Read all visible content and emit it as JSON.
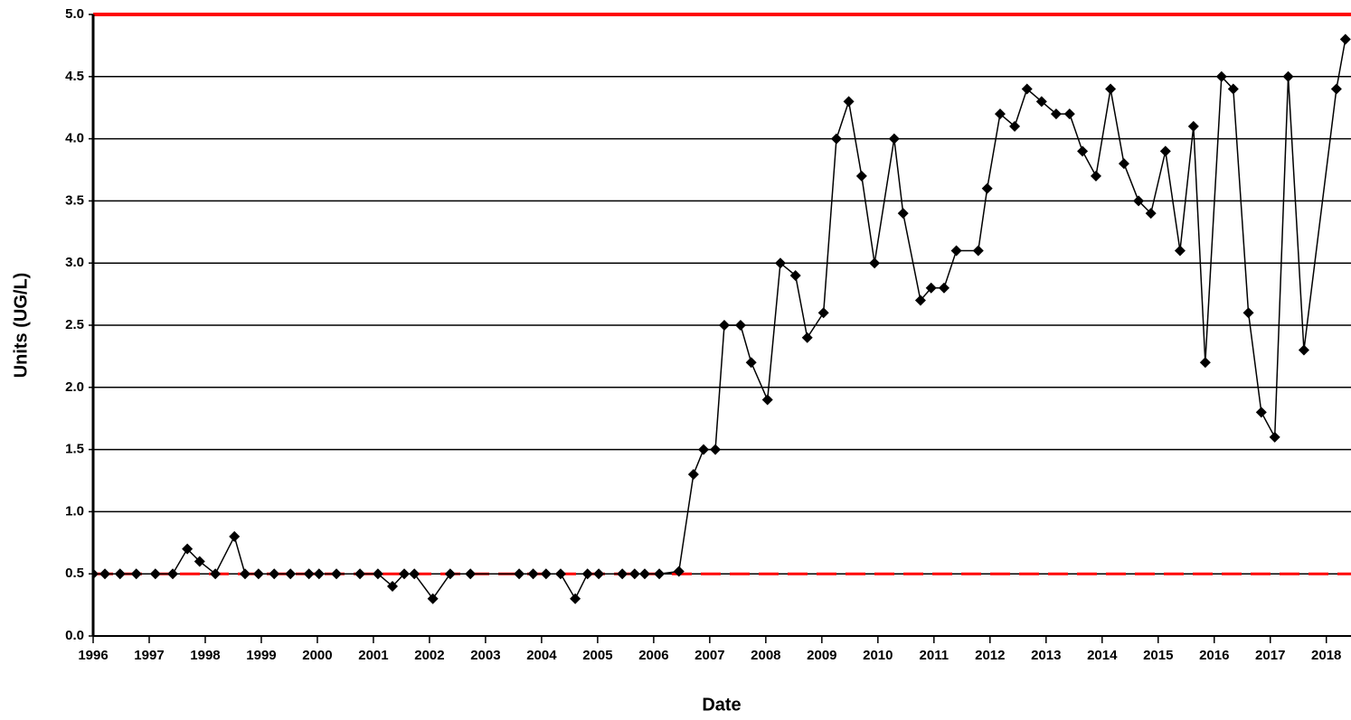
{
  "chart_data": {
    "type": "line",
    "x_label": "Date",
    "y_label": "Units (UG/L)",
    "x": [
      1996.0,
      1996.21,
      1996.48,
      1996.77,
      1997.11,
      1997.42,
      1997.68,
      1997.9,
      1998.18,
      1998.52,
      1998.71,
      1998.95,
      1999.23,
      1999.52,
      1999.85,
      2000.03,
      2000.34,
      2000.76,
      2001.08,
      2001.34,
      2001.55,
      2001.73,
      2002.06,
      2002.37,
      2002.73,
      2003.6,
      2003.85,
      2004.08,
      2004.34,
      2004.6,
      2004.82,
      2005.02,
      2005.44,
      2005.66,
      2005.84,
      2006.1,
      2006.45,
      2006.71,
      2006.89,
      2007.1,
      2007.26,
      2007.55,
      2007.74,
      2008.03,
      2008.26,
      2008.53,
      2008.74,
      2009.03,
      2009.26,
      2009.48,
      2009.71,
      2009.94,
      2010.29,
      2010.45,
      2010.76,
      2010.95,
      2011.18,
      2011.4,
      2011.79,
      2011.95,
      2012.18,
      2012.44,
      2012.66,
      2012.92,
      2013.18,
      2013.42,
      2013.65,
      2013.89,
      2014.15,
      2014.39,
      2014.65,
      2014.87,
      2015.13,
      2015.39,
      2015.63,
      2015.84,
      2016.13,
      2016.34,
      2016.61,
      2016.84,
      2017.08,
      2017.32,
      2017.6,
      2018.18,
      2018.34
    ],
    "series": [
      {
        "color": "#000000",
        "values": [
          0.5,
          0.5,
          0.5,
          0.5,
          0.5,
          0.5,
          0.7,
          0.6,
          0.5,
          0.8,
          0.5,
          0.5,
          0.5,
          0.5,
          0.5,
          0.5,
          0.5,
          0.5,
          0.5,
          0.4,
          0.5,
          0.5,
          0.3,
          0.5,
          0.5,
          0.5,
          0.5,
          0.5,
          0.5,
          0.3,
          0.5,
          0.5,
          0.5,
          0.5,
          0.5,
          0.5,
          0.52,
          1.3,
          1.5,
          1.5,
          2.5,
          2.5,
          2.2,
          1.9,
          3.0,
          2.9,
          2.4,
          2.6,
          4.0,
          4.3,
          3.7,
          3.0,
          4.0,
          3.4,
          2.7,
          2.8,
          2.8,
          3.1,
          3.1,
          3.6,
          4.2,
          4.1,
          4.4,
          4.3,
          4.2,
          4.2,
          3.9,
          3.7,
          4.4,
          3.8,
          3.5,
          3.4,
          3.9,
          3.1,
          4.1,
          2.2,
          4.5,
          4.4,
          2.6,
          1.8,
          1.6,
          4.5,
          2.3,
          4.4,
          4.8
        ]
      }
    ],
    "xlim": [
      1996,
      2018.44
    ],
    "xticks": [
      1996,
      1997,
      1998,
      1999,
      2000,
      2001,
      2002,
      2003,
      2004,
      2005,
      2006,
      2007,
      2008,
      2009,
      2010,
      2011,
      2012,
      2013,
      2014,
      2015,
      2016,
      2017,
      2018
    ],
    "ylim": [
      0,
      5
    ],
    "yticks": [
      {
        "value": 0,
        "label": "0.0"
      },
      {
        "value": 0.5,
        "label": "0.5"
      },
      {
        "value": 1,
        "label": "1.0"
      },
      {
        "value": 1.5,
        "label": "1.5"
      },
      {
        "value": 2,
        "label": "2.0"
      },
      {
        "value": 2.5,
        "label": "2.5"
      },
      {
        "value": 3,
        "label": "3.0"
      },
      {
        "value": 3.5,
        "label": "3.5"
      },
      {
        "value": 4,
        "label": "4.0"
      },
      {
        "value": 4.5,
        "label": "4.5"
      },
      {
        "value": 5,
        "label": "5.0"
      }
    ],
    "grid": true,
    "reference_lines": [
      {
        "value": 5,
        "color": "#ff0000",
        "style": "solid"
      },
      {
        "value": 0.5,
        "color": "#ff0000",
        "style": "dashed"
      }
    ]
  }
}
